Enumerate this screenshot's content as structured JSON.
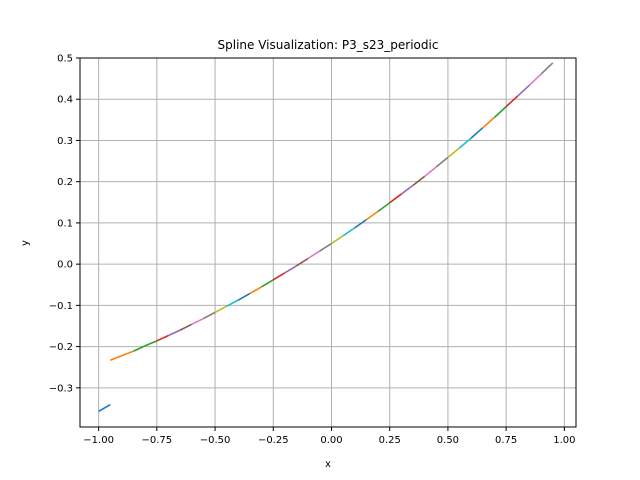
{
  "chart_data": {
    "type": "line",
    "title": "Spline Visualization: P3_s23_periodic",
    "xlabel": "x",
    "ylabel": "y",
    "xlim": [
      -1.08,
      1.05
    ],
    "ylim": [
      -0.395,
      0.5
    ],
    "xticks": [
      -1.0,
      -0.75,
      -0.5,
      -0.25,
      0.0,
      0.25,
      0.5,
      0.75,
      1.0
    ],
    "xtick_labels": [
      "−1.00",
      "−0.75",
      "−0.50",
      "−0.25",
      "0.00",
      "0.25",
      "0.50",
      "0.75",
      "1.00"
    ],
    "yticks": [
      -0.3,
      -0.2,
      -0.1,
      0.0,
      0.1,
      0.2,
      0.3,
      0.4,
      0.5
    ],
    "ytick_labels": [
      "−0.3",
      "−0.2",
      "−0.1",
      "0.0",
      "0.1",
      "0.2",
      "0.3",
      "0.4",
      "0.5"
    ],
    "grid": true,
    "legend": "none",
    "colors": [
      "#1f77b4",
      "#ff7f0e",
      "#2ca02c",
      "#d62728",
      "#9467bd",
      "#8c564b",
      "#e377c2",
      "#7f7f7f",
      "#bcbd22",
      "#17becf"
    ],
    "series": [
      {
        "color": "#1f77b4",
        "x": [
          -1.0,
          -0.95
        ],
        "y": [
          -0.357,
          -0.341
        ]
      },
      {
        "color": "#ff7f0e",
        "x": [
          -0.95,
          -0.9,
          -0.85
        ],
        "y": [
          -0.233,
          -0.222,
          -0.211
        ]
      },
      {
        "color": "#2ca02c",
        "x": [
          -0.85,
          -0.8,
          -0.75
        ],
        "y": [
          -0.211,
          -0.198,
          -0.186
        ]
      },
      {
        "color": "#d62728",
        "x": [
          -0.75,
          -0.7
        ],
        "y": [
          -0.186,
          -0.173
        ]
      },
      {
        "color": "#9467bd",
        "x": [
          -0.7,
          -0.65
        ],
        "y": [
          -0.173,
          -0.16
        ]
      },
      {
        "color": "#8c564b",
        "x": [
          -0.65,
          -0.6
        ],
        "y": [
          -0.16,
          -0.146
        ]
      },
      {
        "color": "#e377c2",
        "x": [
          -0.6,
          -0.55
        ],
        "y": [
          -0.146,
          -0.132
        ]
      },
      {
        "color": "#7f7f7f",
        "x": [
          -0.55,
          -0.5
        ],
        "y": [
          -0.132,
          -0.117
        ]
      },
      {
        "color": "#bcbd22",
        "x": [
          -0.5,
          -0.45
        ],
        "y": [
          -0.117,
          -0.102
        ]
      },
      {
        "color": "#17becf",
        "x": [
          -0.45,
          -0.4
        ],
        "y": [
          -0.102,
          -0.087
        ]
      },
      {
        "color": "#1f77b4",
        "x": [
          -0.4,
          -0.35
        ],
        "y": [
          -0.087,
          -0.071
        ]
      },
      {
        "color": "#ff7f0e",
        "x": [
          -0.35,
          -0.3
        ],
        "y": [
          -0.071,
          -0.055
        ]
      },
      {
        "color": "#2ca02c",
        "x": [
          -0.3,
          -0.25
        ],
        "y": [
          -0.055,
          -0.038
        ]
      },
      {
        "color": "#d62728",
        "x": [
          -0.25,
          -0.2
        ],
        "y": [
          -0.038,
          -0.021
        ]
      },
      {
        "color": "#9467bd",
        "x": [
          -0.2,
          -0.15
        ],
        "y": [
          -0.021,
          -0.004
        ]
      },
      {
        "color": "#8c564b",
        "x": [
          -0.15,
          -0.1
        ],
        "y": [
          -0.004,
          0.014
        ]
      },
      {
        "color": "#e377c2",
        "x": [
          -0.1,
          -0.05
        ],
        "y": [
          0.014,
          0.032
        ]
      },
      {
        "color": "#7f7f7f",
        "x": [
          -0.05,
          0.0
        ],
        "y": [
          0.032,
          0.05
        ]
      },
      {
        "color": "#bcbd22",
        "x": [
          0.0,
          0.05
        ],
        "y": [
          0.05,
          0.069
        ]
      },
      {
        "color": "#17becf",
        "x": [
          0.05,
          0.1
        ],
        "y": [
          0.069,
          0.088
        ]
      },
      {
        "color": "#1f77b4",
        "x": [
          0.1,
          0.15
        ],
        "y": [
          0.088,
          0.108
        ]
      },
      {
        "color": "#ff7f0e",
        "x": [
          0.15,
          0.2
        ],
        "y": [
          0.108,
          0.128
        ]
      },
      {
        "color": "#2ca02c",
        "x": [
          0.2,
          0.25
        ],
        "y": [
          0.128,
          0.149
        ]
      },
      {
        "color": "#d62728",
        "x": [
          0.25,
          0.3
        ],
        "y": [
          0.149,
          0.17
        ]
      },
      {
        "color": "#9467bd",
        "x": [
          0.3,
          0.35
        ],
        "y": [
          0.17,
          0.191
        ]
      },
      {
        "color": "#8c564b",
        "x": [
          0.35,
          0.4
        ],
        "y": [
          0.191,
          0.213
        ]
      },
      {
        "color": "#e377c2",
        "x": [
          0.4,
          0.45
        ],
        "y": [
          0.213,
          0.236
        ]
      },
      {
        "color": "#7f7f7f",
        "x": [
          0.45,
          0.5
        ],
        "y": [
          0.236,
          0.259
        ]
      },
      {
        "color": "#bcbd22",
        "x": [
          0.5,
          0.55
        ],
        "y": [
          0.259,
          0.282
        ]
      },
      {
        "color": "#17becf",
        "x": [
          0.55,
          0.6
        ],
        "y": [
          0.282,
          0.306
        ]
      },
      {
        "color": "#1f77b4",
        "x": [
          0.6,
          0.65
        ],
        "y": [
          0.306,
          0.331
        ]
      },
      {
        "color": "#ff7f0e",
        "x": [
          0.65,
          0.7
        ],
        "y": [
          0.331,
          0.356
        ]
      },
      {
        "color": "#2ca02c",
        "x": [
          0.7,
          0.75
        ],
        "y": [
          0.356,
          0.382
        ]
      },
      {
        "color": "#d62728",
        "x": [
          0.75,
          0.8
        ],
        "y": [
          0.382,
          0.408
        ]
      },
      {
        "color": "#9467bd",
        "x": [
          0.8,
          0.85
        ],
        "y": [
          0.408,
          0.434
        ]
      },
      {
        "color": "#e377c2",
        "x": [
          0.85,
          0.9
        ],
        "y": [
          0.434,
          0.461
        ]
      },
      {
        "color": "#7f7f7f",
        "x": [
          0.9,
          0.95
        ],
        "y": [
          0.461,
          0.488
        ]
      }
    ]
  }
}
